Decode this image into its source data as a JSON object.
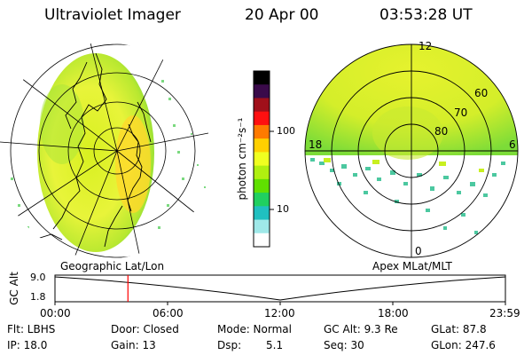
{
  "header": {
    "title": "Ultraviolet Imager",
    "date": "20 Apr 00",
    "time": "03:53:28 UT"
  },
  "left_panel": {
    "projection_label": "Geographic Lat/Lon"
  },
  "right_panel": {
    "projection_label": "Apex MLat/MLT",
    "mlt_labels": {
      "top": "12",
      "left": "18",
      "right": "6",
      "bottom": "0"
    },
    "mlat_rings": [
      "60",
      "70",
      "80"
    ]
  },
  "colorbar": {
    "unit_label": "photon cm⁻²s⁻¹",
    "ticks": [
      "100",
      "10"
    ],
    "colors": [
      "#000000",
      "#3a0a4a",
      "#a0101a",
      "#ff1010",
      "#ff7a00",
      "#ffd000",
      "#f0ff20",
      "#b0f010",
      "#60e000",
      "#20d060",
      "#20c0c0",
      "#9fe8e8",
      "#ffffff"
    ]
  },
  "altitude_plot": {
    "ylabel": "GC Alt",
    "y_ticks": [
      "9.0",
      "1.8"
    ],
    "x_ticks": [
      "00:00",
      "06:00",
      "12:00",
      "18:00",
      "23:59"
    ],
    "marker_color": "#ff0000",
    "marker_time_hours": 3.89
  },
  "info": {
    "filter": "Flt: LBHS",
    "door": "Door: Closed",
    "mode": "Mode: Normal",
    "gc_alt": "GC Alt: 9.3 Re",
    "glat": "GLat:  87.8",
    "ip": "IP: 18.0",
    "gain": "Gain: 13",
    "dsp_label": "Dsp:",
    "dsp_value": "5.1",
    "seq": "Seq: 30",
    "glon": "GLon: 247.6"
  }
}
